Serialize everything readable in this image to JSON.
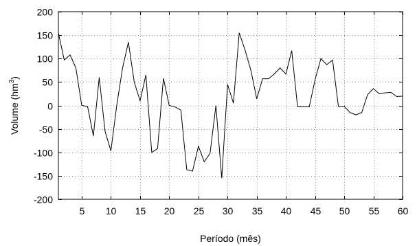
{
  "chart_data": {
    "type": "line",
    "xlabel": "Período (mês)",
    "ylabel_main": "Volume (hm",
    "ylabel_sup": "3",
    "ylabel_end": ")",
    "xlim": [
      1,
      60
    ],
    "ylim": [
      -200,
      200
    ],
    "xticks": [
      5,
      10,
      15,
      20,
      25,
      30,
      35,
      40,
      45,
      50,
      55,
      60
    ],
    "yticks": [
      -200,
      -150,
      -100,
      -50,
      0,
      50,
      100,
      150,
      200
    ],
    "grid": true,
    "colors": {
      "line": "#000000",
      "grid": "#8a8a8a",
      "frame": "#000000"
    },
    "series": [
      {
        "x": [
          1,
          2,
          3,
          4,
          5,
          6,
          7,
          8,
          9,
          10,
          11,
          12,
          13,
          14,
          15,
          16,
          17,
          18,
          19,
          20,
          21,
          22,
          23,
          24,
          25,
          26,
          27,
          28,
          29,
          30,
          31,
          32,
          33,
          34,
          35,
          36,
          37,
          38,
          39,
          40,
          41,
          42,
          43,
          44,
          45,
          46,
          47,
          48,
          49,
          50,
          51,
          52,
          53,
          54,
          55,
          56,
          57,
          58,
          59,
          60
        ],
        "y": [
          155,
          97,
          108,
          80,
          0,
          -2,
          -65,
          60,
          -55,
          -97,
          0,
          80,
          135,
          50,
          10,
          65,
          -100,
          -92,
          58,
          0,
          -3,
          -10,
          -137,
          -140,
          -87,
          -120,
          -102,
          0,
          -155,
          45,
          5,
          155,
          118,
          75,
          14,
          57,
          57,
          67,
          80,
          67,
          117,
          -3,
          -3,
          -3,
          55,
          100,
          87,
          97,
          -2,
          -2,
          -15,
          -20,
          -15,
          23,
          36,
          25,
          27,
          28,
          19,
          20
        ]
      }
    ]
  }
}
